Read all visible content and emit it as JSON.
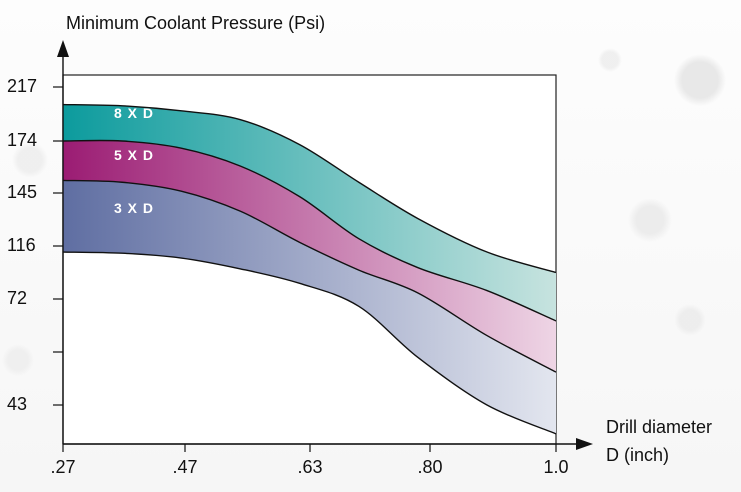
{
  "chart_data": {
    "type": "area",
    "y_title": "Minimum Coolant Pressure (Psi)",
    "x_title_line1": "Drill diameter",
    "x_title_line2": "D (inch)",
    "x_ticks": [
      ".27",
      ".47",
      ".63",
      ".80",
      "1.0"
    ],
    "y_ticks": [
      "217",
      "174",
      "145",
      "116",
      "72",
      "",
      "43"
    ],
    "series": [
      {
        "name": "8 X D",
        "color": "#0c9b9d",
        "lower_color": "#0c9b9d",
        "upper": [
          203,
          202,
          198,
          191,
          172,
          151,
          131,
          111,
          94
        ],
        "lower": [
          174,
          174,
          170,
          160,
          143,
          120,
          98,
          79,
          66
        ]
      },
      {
        "name": "5 X D",
        "color": "#9b1c73",
        "lower_color": "#9b1c73",
        "upper": [
          174,
          174,
          170,
          160,
          143,
          120,
          98,
          79,
          66
        ],
        "lower": [
          152,
          151,
          146,
          135,
          118,
          96,
          77,
          62,
          52
        ]
      },
      {
        "name": "3 X D",
        "color": "#5f6ea2",
        "lower_color": "#5f6ea2",
        "upper": [
          152,
          151,
          146,
          135,
          118,
          96,
          77,
          62,
          52
        ],
        "lower": [
          111,
          110,
          106,
          97,
          85,
          70,
          56,
          43,
          34
        ]
      }
    ],
    "x_positions": [
      0,
      0.12,
      0.24,
      0.36,
      0.48,
      0.6,
      0.72,
      0.86,
      1.0
    ]
  }
}
